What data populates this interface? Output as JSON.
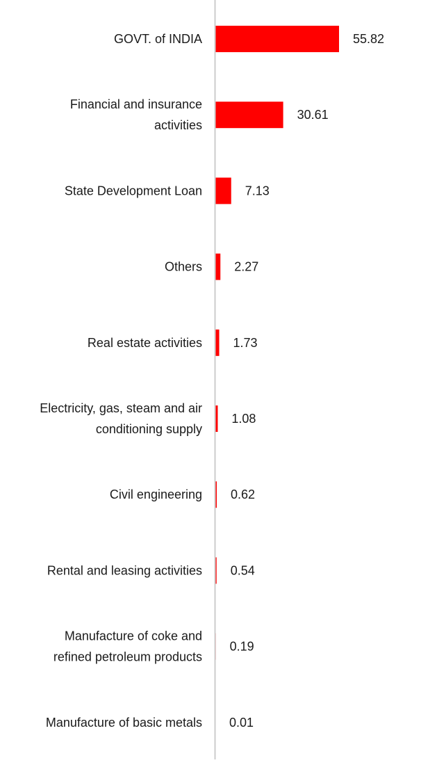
{
  "chart_data": {
    "type": "bar",
    "orientation": "horizontal",
    "categories": [
      "GOVT. of INDIA",
      "Financial and insurance activities",
      "State Development Loan",
      "Others",
      "Real estate activities",
      "Electricity, gas, steam and air conditioning supply",
      "Civil engineering",
      "Rental and leasing activities",
      "Manufacture of coke and refined petroleum products",
      "Manufacture of basic metals"
    ],
    "category_lines": [
      [
        "GOVT. of INDIA"
      ],
      [
        "Financial and insurance",
        "activities"
      ],
      [
        "State Development Loan"
      ],
      [
        "Others"
      ],
      [
        "Real estate activities"
      ],
      [
        "Electricity, gas, steam and air",
        "conditioning supply"
      ],
      [
        "Civil engineering"
      ],
      [
        "Rental and leasing activities"
      ],
      [
        "Manufacture of coke and",
        "refined petroleum products"
      ],
      [
        "Manufacture of basic metals"
      ]
    ],
    "values": [
      55.82,
      30.61,
      7.13,
      2.27,
      1.73,
      1.08,
      0.62,
      0.54,
      0.19,
      0.01
    ],
    "value_labels": [
      "55.82",
      "30.61",
      "7.13",
      "2.27",
      "1.73",
      "1.08",
      "0.62",
      "0.54",
      "0.19",
      "0.01"
    ],
    "title": "",
    "xlabel": "",
    "ylabel": "",
    "xlim": [
      0,
      55.82
    ],
    "grid": false,
    "legend": "none",
    "bar_color": "#ff0000",
    "axis_color": "#cccccc",
    "text_color": "#1a1a1a"
  }
}
